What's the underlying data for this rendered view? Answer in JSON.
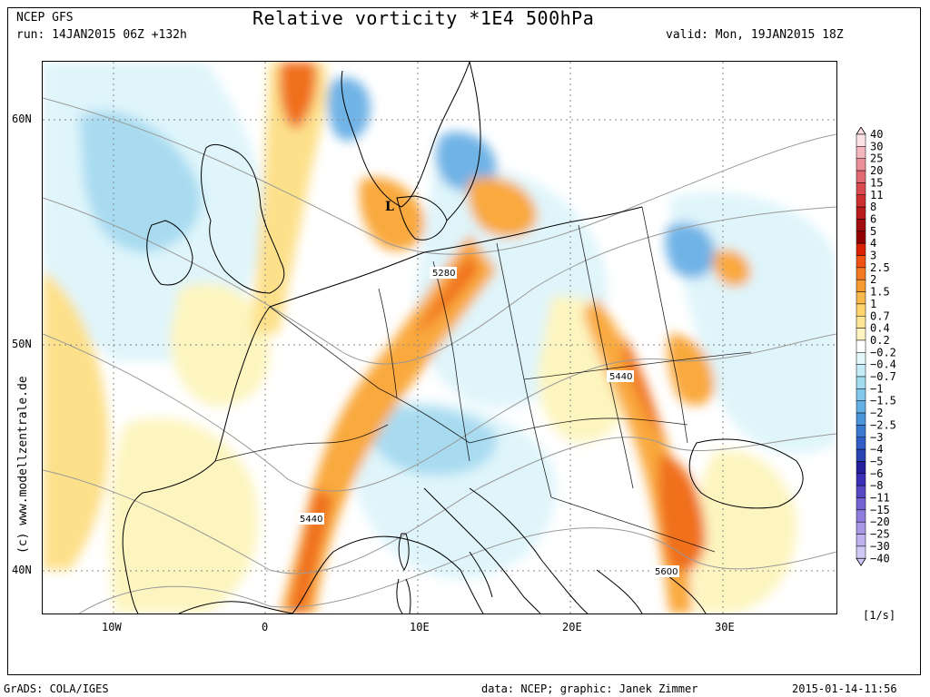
{
  "header": {
    "model": "NCEP GFS",
    "run": "run: 14JAN2015 06Z +132h",
    "title": "Relative vorticity *1E4 500hPa",
    "valid": "valid: Mon, 19JAN2015 18Z"
  },
  "map": {
    "projection": "lat-lon",
    "lon_range": [
      -15,
      38
    ],
    "lat_range": [
      37.5,
      62.5
    ],
    "lon_ticks": [
      "10W",
      "0",
      "10E",
      "20E",
      "30E"
    ],
    "lat_ticks": [
      "60N",
      "50N",
      "40N"
    ],
    "contour_labels": [
      "5280",
      "5440",
      "5440",
      "5600"
    ],
    "low_marker": "L",
    "colors": {
      "pos_weak": "#fdf5c0",
      "pos_light": "#fde08a",
      "pos_mid": "#f9a93c",
      "pos_strong": "#f0701a",
      "pos_max": "#d9400b",
      "neg_weak": "#dff5fb",
      "neg_light": "#a9dbf0",
      "neg_mid": "#6fb3e6",
      "neg_strong": "#3f7fd1",
      "coast": "#000000",
      "geopotential": "#999999"
    }
  },
  "legend": {
    "unit": "[1/s]",
    "levels": [
      "40",
      "30",
      "25",
      "20",
      "15",
      "11",
      "8",
      "6",
      "5",
      "4",
      "3",
      "2.5",
      "2",
      "1.5",
      "1",
      "0.7",
      "0.4",
      "0.2",
      "−0.2",
      "−0.4",
      "−0.7",
      "−1",
      "−1.5",
      "−2",
      "−2.5",
      "−3",
      "−4",
      "−5",
      "−6",
      "−8",
      "−11",
      "−15",
      "−20",
      "−25",
      "−30",
      "−40"
    ],
    "colors": [
      "#fae1e4",
      "#f4b6bd",
      "#ec8f98",
      "#e26874",
      "#d94a51",
      "#cc2f30",
      "#b91a1a",
      "#a10c0c",
      "#8f0000",
      "#d92300",
      "#f05410",
      "#f47920",
      "#f89a32",
      "#fbb84a",
      "#fdd36c",
      "#fee596",
      "#fff3c2",
      "#ffffff",
      "#e3f7fb",
      "#c4ecf7",
      "#a1dcf1",
      "#80c8ec",
      "#62b0e4",
      "#4a95dc",
      "#3a79d2",
      "#2f5ec6",
      "#2b44b4",
      "#261f9e",
      "#3b2fb8",
      "#5848c6",
      "#7462d2",
      "#8f7ddd",
      "#a898e6",
      "#bdb1ee",
      "#d0c8f4"
    ]
  },
  "credit": "(c)  www.modellzentrale.de",
  "footer": {
    "left": "GrADS: COLA/IGES",
    "center": "data: NCEP; graphic: Janek Zimmer",
    "right": "2015-01-14-11:56"
  }
}
